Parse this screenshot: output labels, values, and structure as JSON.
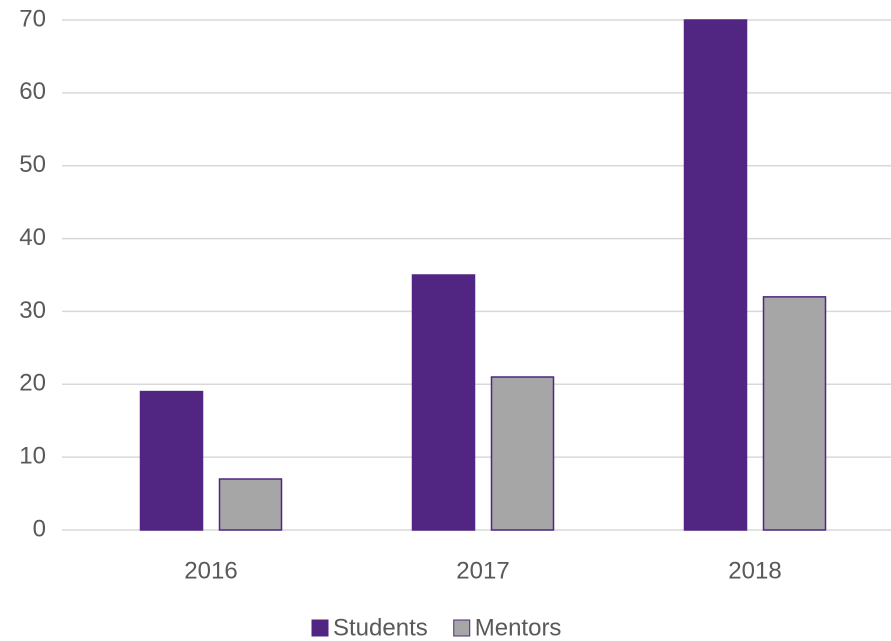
{
  "chart_data": {
    "type": "bar",
    "categories": [
      "2016",
      "2017",
      "2018"
    ],
    "series": [
      {
        "name": "Students",
        "color": "#512682",
        "values": [
          19,
          35,
          70
        ]
      },
      {
        "name": "Mentors",
        "color": "#a6a6a6",
        "values": [
          7,
          21,
          32
        ]
      }
    ],
    "ylim": [
      0,
      70
    ],
    "yticks": [
      0,
      10,
      20,
      30,
      40,
      50,
      60,
      70
    ],
    "grid": true,
    "legend": "bottom"
  }
}
